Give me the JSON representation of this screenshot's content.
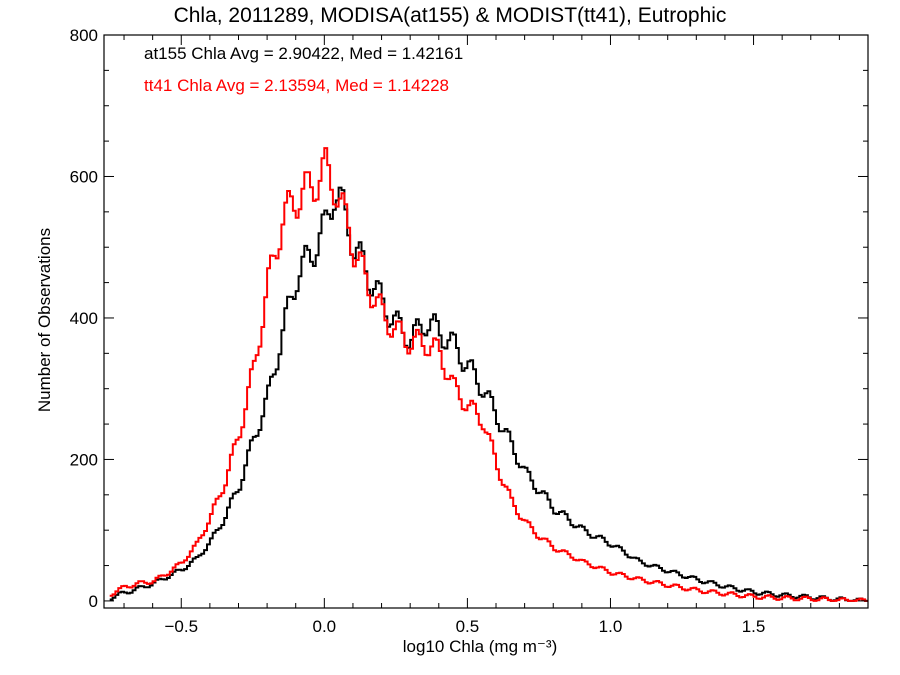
{
  "chart_data": {
    "type": "line",
    "title": "Chla, 2011289, MODISA(at155) & MODIST(tt41), Eutrophic",
    "xlabel": "log10 Chla (mg m⁻³)",
    "ylabel": "Number of Observations",
    "xlim": [
      -0.77,
      1.9
    ],
    "ylim": [
      -10,
      800
    ],
    "x_ticks": [
      -0.5,
      0.0,
      0.5,
      1.0,
      1.5
    ],
    "x_tick_labels": [
      "−0.5",
      "0.0",
      "0.5",
      "1.0",
      "1.5"
    ],
    "y_ticks": [
      0,
      200,
      400,
      600,
      800
    ],
    "y_tick_labels": [
      "0",
      "200",
      "400",
      "600",
      "800"
    ],
    "grid": false,
    "annotations": [
      {
        "text": "at155 Chla Avg = 2.90422, Med = 1.42161",
        "color": "#000000"
      },
      {
        "text": "tt41 Chla Avg = 2.13594, Med = 1.14228",
        "color": "#ff0000"
      }
    ],
    "series": [
      {
        "name": "at155",
        "color": "#000000",
        "points": [
          [
            -0.75,
            5
          ],
          [
            -0.7,
            12
          ],
          [
            -0.65,
            18
          ],
          [
            -0.6,
            25
          ],
          [
            -0.55,
            35
          ],
          [
            -0.5,
            45
          ],
          [
            -0.45,
            60
          ],
          [
            -0.4,
            85
          ],
          [
            -0.35,
            120
          ],
          [
            -0.3,
            165
          ],
          [
            -0.25,
            230
          ],
          [
            -0.2,
            290
          ],
          [
            -0.15,
            380
          ],
          [
            -0.1,
            460
          ],
          [
            -0.05,
            490
          ],
          [
            0.0,
            530
          ],
          [
            0.03,
            580
          ],
          [
            0.05,
            565
          ],
          [
            0.08,
            530
          ],
          [
            0.1,
            500
          ],
          [
            0.15,
            460
          ],
          [
            0.2,
            420
          ],
          [
            0.25,
            390
          ],
          [
            0.3,
            370
          ],
          [
            0.35,
            395
          ],
          [
            0.4,
            380
          ],
          [
            0.45,
            360
          ],
          [
            0.5,
            330
          ],
          [
            0.55,
            300
          ],
          [
            0.6,
            260
          ],
          [
            0.65,
            220
          ],
          [
            0.7,
            180
          ],
          [
            0.75,
            155
          ],
          [
            0.8,
            130
          ],
          [
            0.9,
            100
          ],
          [
            1.0,
            80
          ],
          [
            1.1,
            55
          ],
          [
            1.2,
            42
          ],
          [
            1.3,
            30
          ],
          [
            1.4,
            20
          ],
          [
            1.5,
            12
          ],
          [
            1.6,
            8
          ],
          [
            1.7,
            5
          ],
          [
            1.8,
            2
          ],
          [
            1.9,
            0
          ]
        ]
      },
      {
        "name": "tt41",
        "color": "#ff0000",
        "points": [
          [
            -0.75,
            10
          ],
          [
            -0.7,
            20
          ],
          [
            -0.65,
            25
          ],
          [
            -0.6,
            28
          ],
          [
            -0.55,
            40
          ],
          [
            -0.5,
            55
          ],
          [
            -0.45,
            80
          ],
          [
            -0.4,
            120
          ],
          [
            -0.35,
            170
          ],
          [
            -0.3,
            240
          ],
          [
            -0.25,
            330
          ],
          [
            -0.2,
            450
          ],
          [
            -0.15,
            540
          ],
          [
            -0.1,
            570
          ],
          [
            -0.05,
            585
          ],
          [
            0.0,
            610
          ],
          [
            0.03,
            590
          ],
          [
            0.05,
            560
          ],
          [
            0.08,
            530
          ],
          [
            0.1,
            495
          ],
          [
            0.15,
            445
          ],
          [
            0.2,
            405
          ],
          [
            0.25,
            380
          ],
          [
            0.3,
            365
          ],
          [
            0.35,
            365
          ],
          [
            0.4,
            350
          ],
          [
            0.45,
            300
          ],
          [
            0.5,
            275
          ],
          [
            0.55,
            255
          ],
          [
            0.6,
            190
          ],
          [
            0.65,
            140
          ],
          [
            0.7,
            110
          ],
          [
            0.75,
            90
          ],
          [
            0.8,
            75
          ],
          [
            0.9,
            55
          ],
          [
            1.0,
            40
          ],
          [
            1.1,
            30
          ],
          [
            1.2,
            22
          ],
          [
            1.3,
            15
          ],
          [
            1.4,
            10
          ],
          [
            1.5,
            6
          ],
          [
            1.6,
            4
          ],
          [
            1.7,
            3
          ],
          [
            1.8,
            1
          ],
          [
            1.9,
            0
          ]
        ]
      }
    ]
  }
}
